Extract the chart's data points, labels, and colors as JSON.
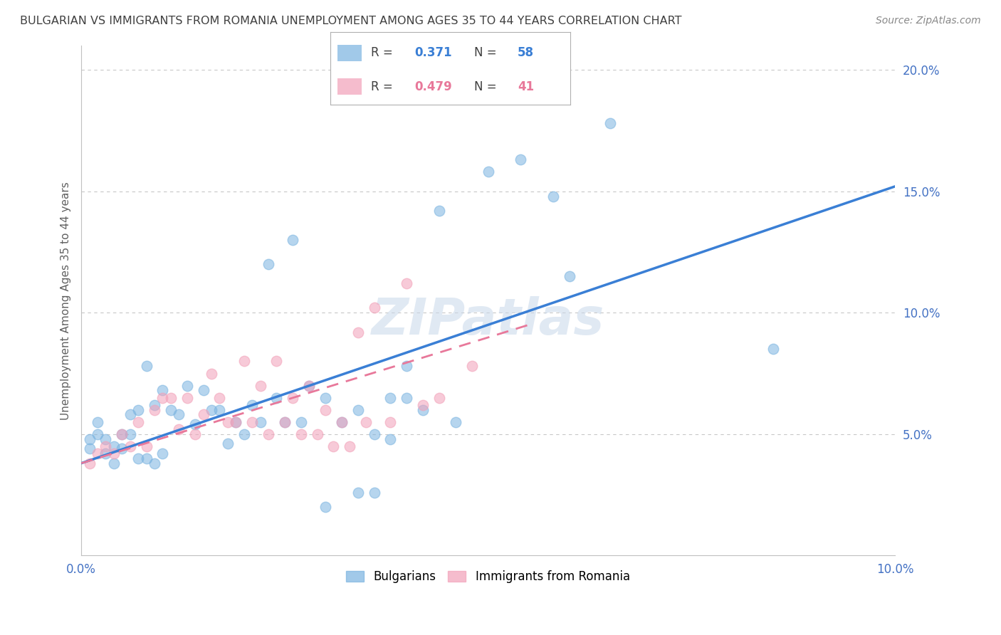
{
  "title": "BULGARIAN VS IMMIGRANTS FROM ROMANIA UNEMPLOYMENT AMONG AGES 35 TO 44 YEARS CORRELATION CHART",
  "source": "Source: ZipAtlas.com",
  "ylabel": "Unemployment Among Ages 35 to 44 years",
  "xlim": [
    0.0,
    0.1
  ],
  "ylim": [
    0.0,
    0.21
  ],
  "legend1_r": "0.371",
  "legend1_n": "58",
  "legend2_r": "0.479",
  "legend2_n": "41",
  "blue_color": "#7ab3e0",
  "pink_color": "#f2a0b8",
  "blue_line_color": "#3a7fd5",
  "pink_line_color": "#e8789a",
  "title_color": "#404040",
  "axis_label_color": "#606060",
  "tick_color": "#4472c4",
  "grid_color": "#c8c8c8",
  "blue_scatter_x": [
    0.001,
    0.001,
    0.002,
    0.002,
    0.003,
    0.003,
    0.004,
    0.004,
    0.005,
    0.005,
    0.006,
    0.006,
    0.007,
    0.007,
    0.008,
    0.008,
    0.009,
    0.009,
    0.01,
    0.01,
    0.011,
    0.012,
    0.013,
    0.014,
    0.015,
    0.016,
    0.017,
    0.018,
    0.019,
    0.02,
    0.021,
    0.022,
    0.023,
    0.024,
    0.025,
    0.026,
    0.027,
    0.028,
    0.03,
    0.032,
    0.034,
    0.036,
    0.038,
    0.04,
    0.042,
    0.044,
    0.046,
    0.05,
    0.054,
    0.058,
    0.06,
    0.065,
    0.085,
    0.04,
    0.038,
    0.036,
    0.034,
    0.03
  ],
  "blue_scatter_y": [
    0.044,
    0.048,
    0.05,
    0.055,
    0.042,
    0.048,
    0.038,
    0.045,
    0.044,
    0.05,
    0.05,
    0.058,
    0.04,
    0.06,
    0.04,
    0.078,
    0.038,
    0.062,
    0.042,
    0.068,
    0.06,
    0.058,
    0.07,
    0.054,
    0.068,
    0.06,
    0.06,
    0.046,
    0.055,
    0.05,
    0.062,
    0.055,
    0.12,
    0.065,
    0.055,
    0.13,
    0.055,
    0.07,
    0.065,
    0.055,
    0.06,
    0.05,
    0.065,
    0.065,
    0.06,
    0.142,
    0.055,
    0.158,
    0.163,
    0.148,
    0.115,
    0.178,
    0.085,
    0.078,
    0.048,
    0.026,
    0.026,
    0.02
  ],
  "pink_scatter_x": [
    0.001,
    0.002,
    0.003,
    0.004,
    0.005,
    0.006,
    0.007,
    0.008,
    0.009,
    0.01,
    0.011,
    0.012,
    0.013,
    0.014,
    0.015,
    0.016,
    0.017,
    0.018,
    0.019,
    0.02,
    0.021,
    0.022,
    0.023,
    0.024,
    0.025,
    0.026,
    0.027,
    0.028,
    0.029,
    0.03,
    0.031,
    0.032,
    0.033,
    0.034,
    0.035,
    0.036,
    0.038,
    0.04,
    0.042,
    0.044,
    0.048
  ],
  "pink_scatter_y": [
    0.038,
    0.042,
    0.045,
    0.042,
    0.05,
    0.045,
    0.055,
    0.045,
    0.06,
    0.065,
    0.065,
    0.052,
    0.065,
    0.05,
    0.058,
    0.075,
    0.065,
    0.055,
    0.055,
    0.08,
    0.055,
    0.07,
    0.05,
    0.08,
    0.055,
    0.065,
    0.05,
    0.07,
    0.05,
    0.06,
    0.045,
    0.055,
    0.045,
    0.092,
    0.055,
    0.102,
    0.055,
    0.112,
    0.062,
    0.065,
    0.078
  ],
  "blue_line_x": [
    0.0,
    0.1
  ],
  "blue_line_y": [
    0.038,
    0.152
  ],
  "pink_line_x": [
    0.0,
    0.055
  ],
  "pink_line_y": [
    0.038,
    0.095
  ]
}
